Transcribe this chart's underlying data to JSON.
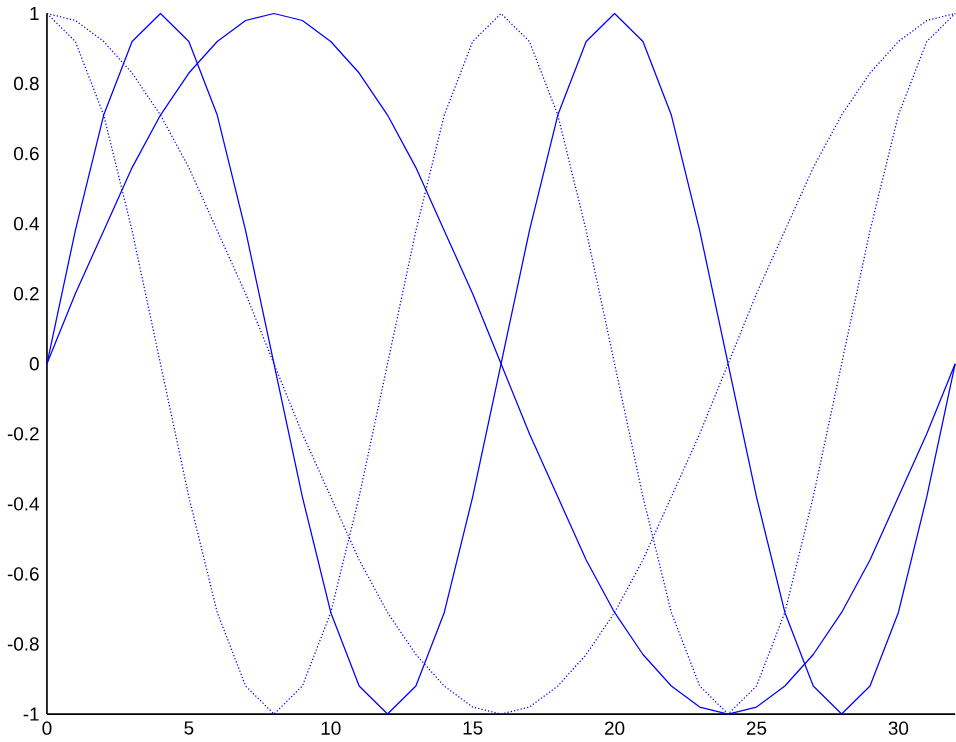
{
  "chart_data": {
    "type": "line",
    "x": [
      0,
      1,
      2,
      3,
      4,
      5,
      6,
      7,
      8,
      9,
      10,
      11,
      12,
      13,
      14,
      15,
      16,
      17,
      18,
      19,
      20,
      21,
      22,
      23,
      24,
      25,
      26,
      27,
      28,
      29,
      30,
      31,
      32
    ],
    "series": [
      {
        "color": "#0000ff",
        "line_style": "solid",
        "values": [
          0,
          0.38,
          0.71,
          0.92,
          1,
          0.92,
          0.71,
          0.38,
          0,
          -0.38,
          -0.71,
          -0.92,
          -1,
          -0.92,
          -0.71,
          -0.38,
          0,
          0.38,
          0.71,
          0.92,
          1,
          0.92,
          0.71,
          0.38,
          0,
          -0.38,
          -0.71,
          -0.92,
          -1,
          -0.92,
          -0.71,
          -0.38,
          0
        ]
      },
      {
        "color": "#0000ff",
        "line_style": "solid",
        "values": [
          0,
          0.2,
          0.38,
          0.56,
          0.71,
          0.83,
          0.92,
          0.98,
          1,
          0.98,
          0.92,
          0.83,
          0.71,
          0.56,
          0.38,
          0.2,
          0,
          -0.2,
          -0.38,
          -0.56,
          -0.71,
          -0.83,
          -0.92,
          -0.98,
          -1,
          -0.98,
          -0.92,
          -0.83,
          -0.71,
          -0.56,
          -0.38,
          -0.2,
          0
        ]
      },
      {
        "color": "#0000ff",
        "line_style": "dotted",
        "values": [
          1,
          0.92,
          0.71,
          0.38,
          0,
          -0.38,
          -0.71,
          -0.92,
          -1,
          -0.92,
          -0.71,
          -0.38,
          0,
          0.38,
          0.71,
          0.92,
          1,
          0.92,
          0.71,
          0.38,
          0,
          -0.38,
          -0.71,
          -0.92,
          -1,
          -0.92,
          -0.71,
          -0.38,
          0,
          0.38,
          0.71,
          0.92,
          1
        ]
      },
      {
        "color": "#0000ff",
        "line_style": "dotted",
        "values": [
          1,
          0.98,
          0.92,
          0.83,
          0.71,
          0.56,
          0.38,
          0.2,
          0,
          -0.2,
          -0.38,
          -0.56,
          -0.71,
          -0.83,
          -0.92,
          -0.98,
          -1,
          -0.98,
          -0.92,
          -0.83,
          -0.71,
          -0.56,
          -0.38,
          -0.2,
          0,
          0.2,
          0.38,
          0.56,
          0.71,
          0.83,
          0.92,
          0.98,
          1
        ]
      }
    ],
    "xlim": [
      0,
      32
    ],
    "ylim": [
      -1,
      1
    ],
    "xticks": [
      0,
      5,
      10,
      15,
      20,
      25,
      30
    ],
    "yticks": [
      -1,
      -0.8,
      -0.6,
      -0.4,
      -0.2,
      0,
      0.2,
      0.4,
      0.6,
      0.8,
      1
    ]
  }
}
